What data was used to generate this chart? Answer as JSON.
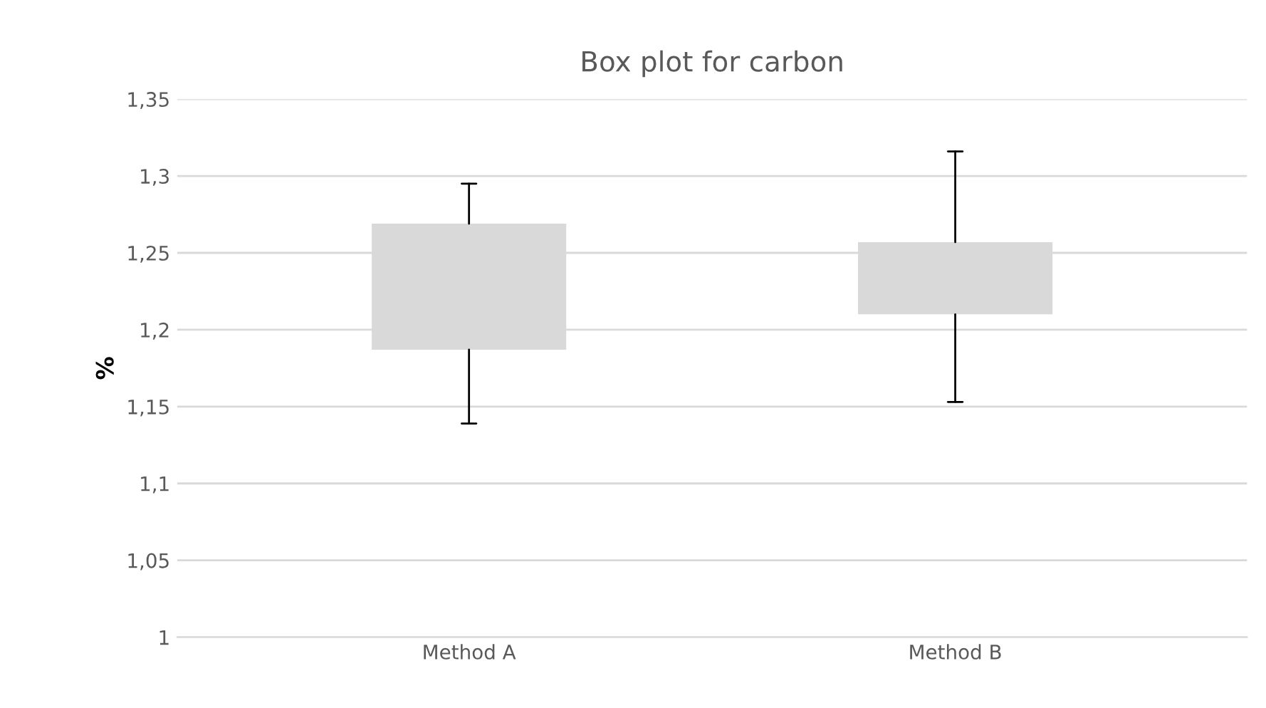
{
  "chart_data": {
    "type": "box",
    "title": "Box plot for carbon",
    "ylabel": "%",
    "categories": [
      "Method A",
      "Method B"
    ],
    "series": [
      {
        "color": "#d9d9d9",
        "boxes": [
          {
            "low": 1.139,
            "q1": 1.187,
            "q3": 1.269,
            "high": 1.295
          },
          {
            "low": 1.153,
            "q1": 1.21,
            "q3": 1.257,
            "high": 1.316
          }
        ]
      }
    ],
    "ylim": [
      1,
      1.35
    ],
    "yticks": [
      {
        "value": 1,
        "label": "1"
      },
      {
        "value": 1.05,
        "label": "1,05"
      },
      {
        "value": 1.1,
        "label": "1,1"
      },
      {
        "value": 1.15,
        "label": "1,15"
      },
      {
        "value": 1.2,
        "label": "1,2"
      },
      {
        "value": 1.25,
        "label": "1,25"
      },
      {
        "value": 1.3,
        "label": "1,3"
      },
      {
        "value": 1.35,
        "label": "1,35"
      }
    ],
    "grid": "y",
    "legend": false
  }
}
